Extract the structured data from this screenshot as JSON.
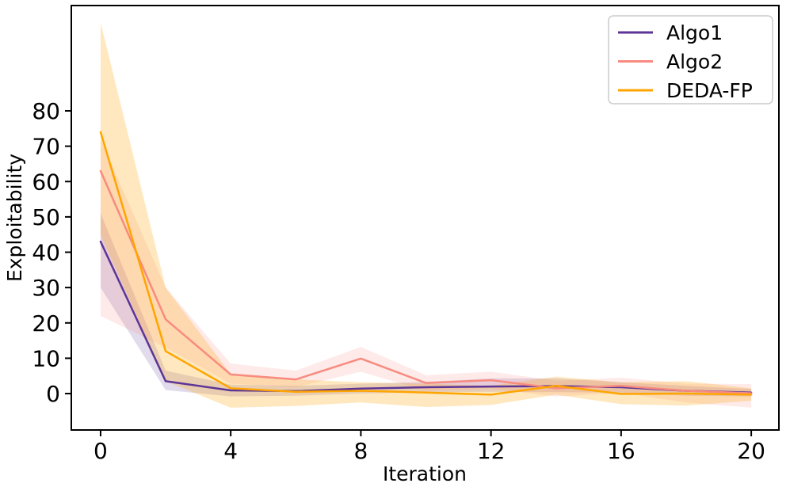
{
  "chart_data": {
    "type": "line",
    "title": "",
    "xlabel": "Iteration",
    "ylabel": "Exploitability",
    "x": [
      0,
      2,
      4,
      6,
      8,
      10,
      12,
      14,
      16,
      18,
      20
    ],
    "xticks": [
      0,
      4,
      8,
      12,
      16,
      20
    ],
    "yticks": [
      0,
      10,
      20,
      30,
      40,
      50,
      60,
      70,
      80
    ],
    "xlim": [
      -0.9,
      20.85
    ],
    "ylim": [
      -10.3,
      109.8
    ],
    "grid": false,
    "legend_position": "upper right",
    "series": [
      {
        "name": "Algo1",
        "color": "#5d3596",
        "band_opacity": 0.18,
        "values": [
          43,
          3.5,
          0.9,
          0.7,
          1.4,
          1.8,
          2.0,
          2.1,
          1.8,
          0.8,
          0.3
        ],
        "band_low": [
          30,
          1.0,
          -0.8,
          -0.6,
          0.0,
          0.4,
          0.5,
          0.4,
          0.3,
          -0.6,
          -0.8
        ],
        "band_high": [
          51,
          6.5,
          2.5,
          2.2,
          2.8,
          3.3,
          4.3,
          4.3,
          3.2,
          2.2,
          1.3
        ]
      },
      {
        "name": "Algo2",
        "color": "#f88b80",
        "band_opacity": 0.18,
        "values": [
          63,
          21,
          5.4,
          4.0,
          9.9,
          3.0,
          3.8,
          1.5,
          2.2,
          0.8,
          0.1
        ],
        "band_low": [
          22,
          13,
          2.8,
          1.8,
          6.2,
          0.8,
          1.4,
          -0.8,
          0.2,
          -2.5,
          -4.0
        ],
        "band_high": [
          72,
          30,
          8.5,
          6.5,
          13.2,
          5.2,
          6.2,
          3.6,
          4.5,
          2.8,
          2.7
        ]
      },
      {
        "name": "DEDA-FP",
        "color": "#ffa500",
        "band_opacity": 0.25,
        "values": [
          74,
          12,
          1.5,
          0.5,
          0.8,
          0.3,
          -0.3,
          2.2,
          -0.1,
          0.0,
          -0.3
        ],
        "band_low": [
          45,
          3.5,
          -4.0,
          -3.5,
          -2.5,
          -3.8,
          -3.2,
          -0.3,
          -3.0,
          -3.4,
          -2.0
        ],
        "band_high": [
          105,
          30,
          5.5,
          4.0,
          3.2,
          2.8,
          2.2,
          4.8,
          3.2,
          3.5,
          1.5
        ]
      }
    ],
    "colors": {
      "spine": "#000000",
      "tick_label": "#000000",
      "legend_border": "#cccccc",
      "legend_background": "#ffffff"
    }
  }
}
